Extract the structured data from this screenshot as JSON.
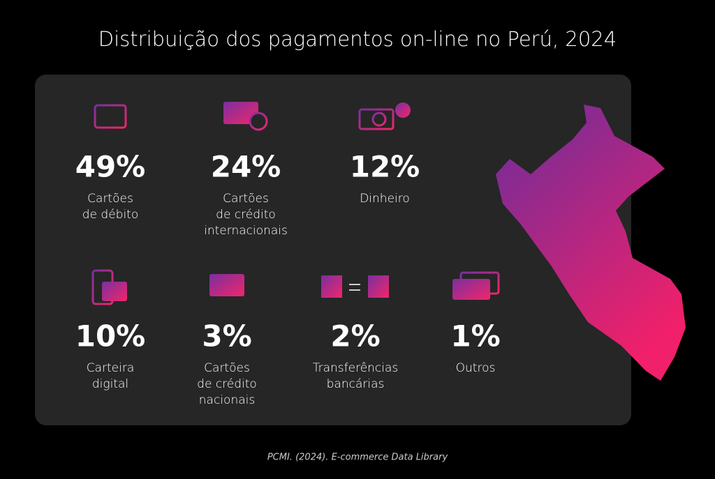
{
  "title": "Distribuição dos pagamentos on-line no Perú, 2024",
  "items": [
    {
      "value": "49%",
      "label": [
        "Cartões",
        "de débito"
      ]
    },
    {
      "value": "24%",
      "label": [
        "Cartões",
        "de crédito",
        "internacionais"
      ]
    },
    {
      "value": "12%",
      "label": [
        "Dinheiro"
      ]
    },
    {
      "value": "10%",
      "label": [
        "Carteira",
        "digital"
      ]
    },
    {
      "value": "3%",
      "label": [
        "Cartões",
        "de crédito",
        "nacionais"
      ]
    },
    {
      "value": "2%",
      "label": [
        "Transferências",
        "bancárias"
      ]
    },
    {
      "value": "1%",
      "label": [
        "Outros"
      ]
    }
  ],
  "source": "PCMI. (2024). E-commerce Data Library"
}
